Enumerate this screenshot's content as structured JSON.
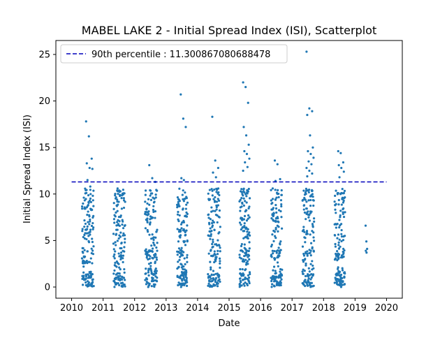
{
  "chart_data": {
    "type": "scatter",
    "title": "MABEL LAKE 2 - Initial Spread Index (ISI), Scatterplot",
    "xlabel": "Date",
    "ylabel": "Initial Spread Index (ISI)",
    "xlim": [
      2009.5,
      2020.5
    ],
    "ylim": [
      -1.2,
      26.5
    ],
    "x_ticks": [
      2010,
      2011,
      2012,
      2013,
      2014,
      2015,
      2016,
      2017,
      2018,
      2019,
      2020
    ],
    "y_ticks": [
      0,
      5,
      10,
      15,
      20,
      25
    ],
    "grid": false,
    "legend_position": "top-left",
    "reference_line": {
      "label": "90th percentile : 11.300867080688478",
      "value": 11.300867080688478,
      "x_range": [
        2010,
        2020
      ],
      "style": "dashed",
      "color": "#0000bb"
    },
    "marker_color": "#1f77b4",
    "seasons": [
      {
        "year": 2010,
        "start": 2010.33,
        "end": 2010.7,
        "notable": [
          17.8,
          16.2,
          13.8,
          13.3,
          12.8,
          12.7,
          11.5,
          10.8
        ]
      },
      {
        "year": 2011,
        "start": 2011.33,
        "end": 2011.7,
        "notable": [
          10.6,
          10.3,
          10.0
        ]
      },
      {
        "year": 2012,
        "start": 2012.33,
        "end": 2012.72,
        "notable": [
          13.1,
          11.7,
          11.3,
          10.4,
          9.6
        ]
      },
      {
        "year": 2013,
        "start": 2013.35,
        "end": 2013.68,
        "notable": [
          20.7,
          18.1,
          17.2,
          11.7,
          11.5
        ]
      },
      {
        "year": 2014,
        "start": 2014.33,
        "end": 2014.72,
        "notable": [
          18.3,
          13.6,
          12.8,
          12.3,
          11.8
        ]
      },
      {
        "year": 2015,
        "start": 2015.33,
        "end": 2015.66,
        "notable": [
          22.0,
          21.5,
          19.8,
          17.2,
          16.3,
          15.3,
          14.6,
          14.3,
          13.8,
          13.4,
          12.9,
          12.5
        ]
      },
      {
        "year": 2016,
        "start": 2016.33,
        "end": 2016.68,
        "notable": [
          13.6,
          13.2,
          11.6,
          11.4
        ]
      },
      {
        "year": 2017,
        "start": 2017.33,
        "end": 2017.7,
        "notable": [
          25.3,
          19.2,
          18.9,
          18.5,
          16.3,
          15.0,
          14.6,
          14.3,
          13.9,
          13.5,
          13.2,
          12.8,
          12.5,
          12.2,
          11.9
        ]
      },
      {
        "year": 2018,
        "start": 2018.35,
        "end": 2018.68,
        "notable": [
          14.6,
          14.4,
          13.4,
          13.1,
          12.8,
          12.4,
          11.8
        ]
      },
      {
        "year": 2019,
        "start": 2019.3,
        "end": 2019.4,
        "notable": [
          6.6,
          4.9,
          4.1,
          3.9,
          3.7
        ]
      }
    ]
  }
}
